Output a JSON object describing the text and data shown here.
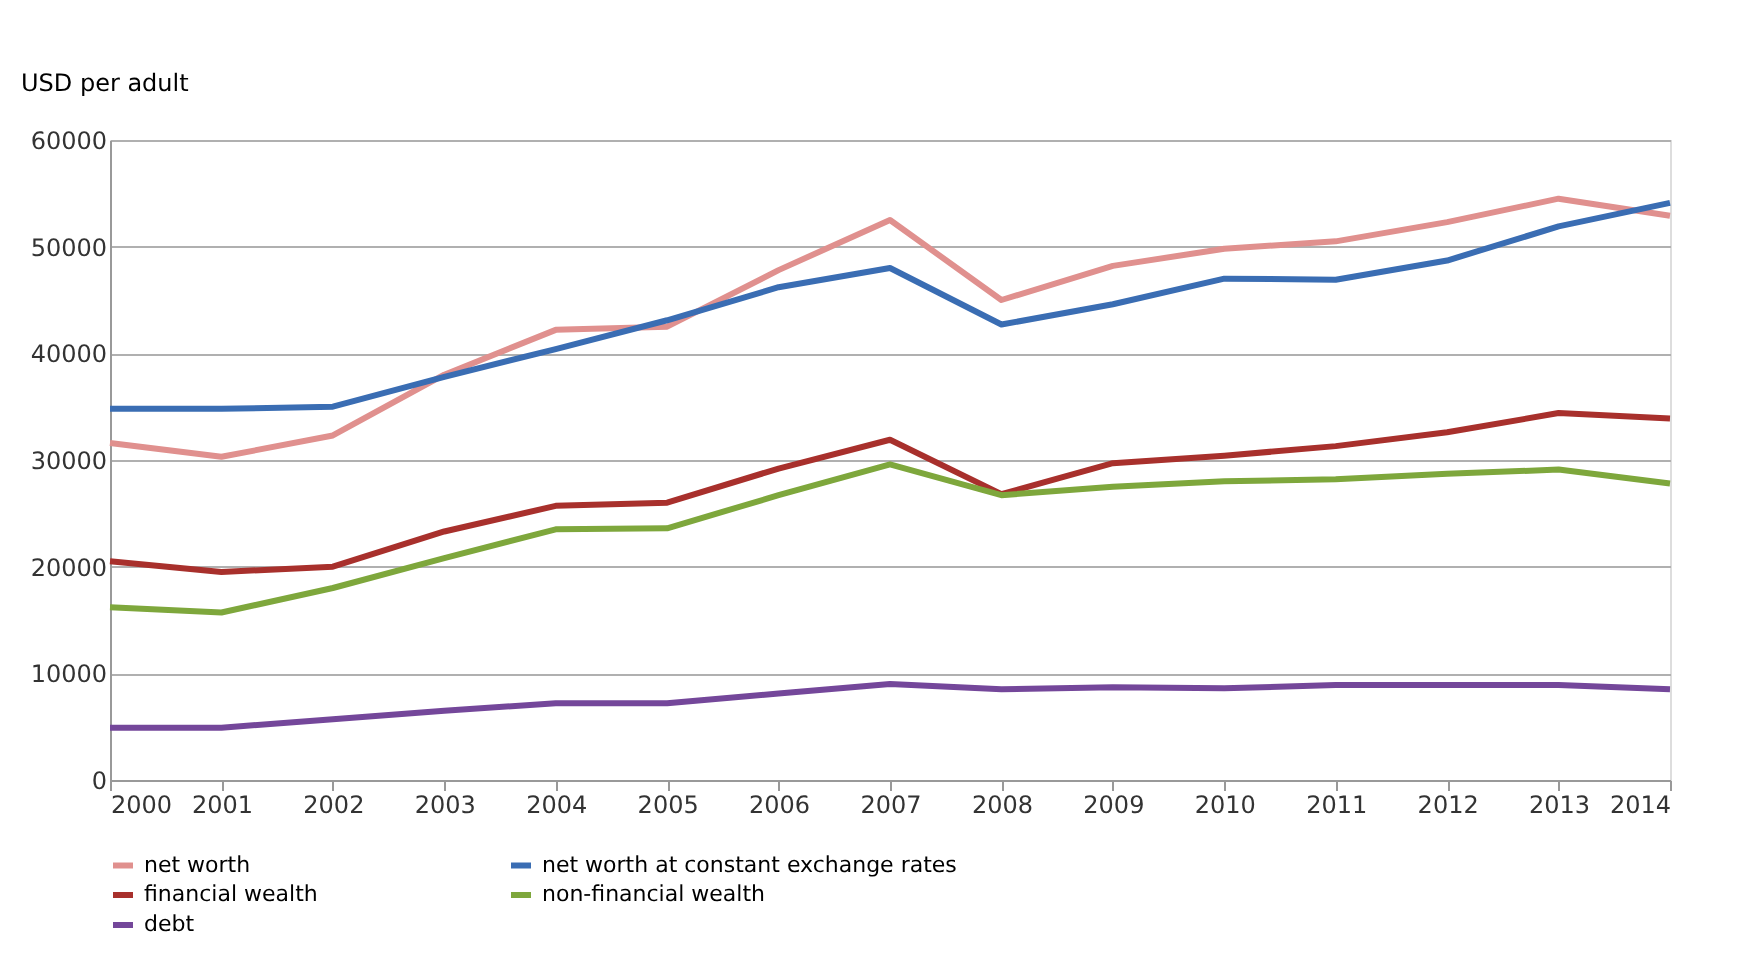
{
  "chart_data": {
    "type": "line",
    "ylabel": "USD per adult",
    "categories": [
      "2000",
      "2001",
      "2002",
      "2003",
      "2004",
      "2005",
      "2006",
      "2007",
      "2008",
      "2009",
      "2010",
      "2011",
      "2012",
      "2013",
      "2014"
    ],
    "series": [
      {
        "name": "net worth",
        "color": "#e0908e",
        "values": [
          31600,
          30300,
          32300,
          38000,
          42200,
          42500,
          47800,
          52500,
          45000,
          48200,
          49800,
          50500,
          52300,
          54500,
          52900
        ]
      },
      {
        "name": "net worth at constant exchange rates",
        "color": "#3a6db3",
        "values": [
          34800,
          34800,
          35000,
          37800,
          40400,
          43100,
          46200,
          48000,
          42700,
          44600,
          47000,
          46900,
          48700,
          51900,
          54100
        ]
      },
      {
        "name": "financial wealth",
        "color": "#a8302c",
        "values": [
          20500,
          19500,
          20000,
          23300,
          25700,
          26000,
          29200,
          31900,
          26800,
          29700,
          30400,
          31300,
          32600,
          34400,
          33900
        ]
      },
      {
        "name": "non-financial wealth",
        "color": "#7ea73c",
        "values": [
          16200,
          15700,
          18000,
          20800,
          23500,
          23600,
          26700,
          29600,
          26700,
          27500,
          28000,
          28200,
          28700,
          29100,
          27800
        ]
      },
      {
        "name": "debt",
        "color": "#74479a",
        "values": [
          4900,
          4900,
          5700,
          6500,
          7200,
          7200,
          8100,
          9000,
          8500,
          8700,
          8600,
          8900,
          8900,
          8900,
          8500
        ]
      }
    ],
    "ylim": [
      0,
      60000
    ],
    "yticks": [
      0,
      10000,
      20000,
      30000,
      40000,
      50000,
      60000
    ],
    "grid": "y",
    "legend": "bottom",
    "line_style": "solid",
    "marker": "none"
  }
}
